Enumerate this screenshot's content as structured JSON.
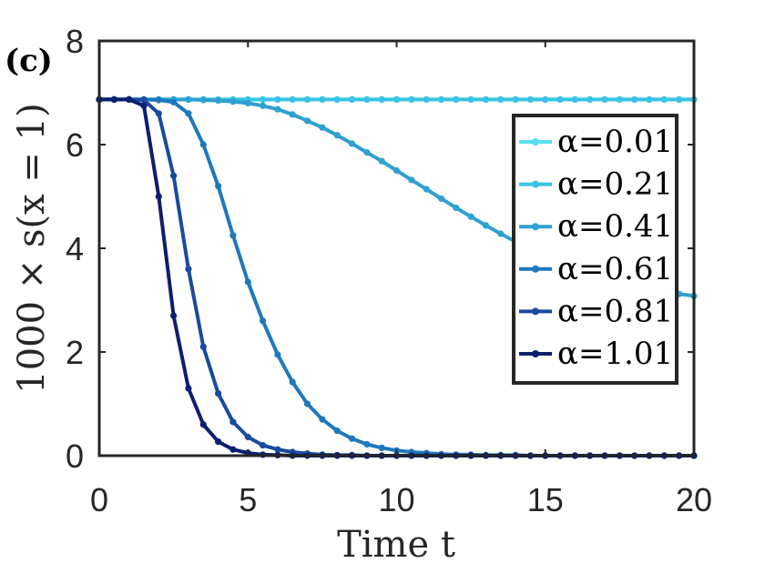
{
  "chart_data": {
    "type": "line",
    "panel_label": "(c)",
    "xlabel": "Time t",
    "ylabel": "1000 × s(x = 1)",
    "xlim": [
      0,
      20
    ],
    "ylim": [
      0,
      8
    ],
    "xticks": [
      0,
      5,
      10,
      15,
      20
    ],
    "yticks": [
      0,
      2,
      4,
      6,
      8
    ],
    "xtick_labels": [
      "0",
      "5",
      "10",
      "15",
      "20"
    ],
    "ytick_labels": [
      "0",
      "2",
      "4",
      "6",
      "8"
    ],
    "grid": false,
    "legend_position": "right",
    "marker": "dot",
    "x": [
      0,
      0.5,
      1,
      1.5,
      2,
      2.5,
      3,
      3.5,
      4,
      4.5,
      5,
      5.5,
      6,
      6.5,
      7,
      7.5,
      8,
      8.5,
      9,
      9.5,
      10,
      10.5,
      11,
      11.5,
      12,
      12.5,
      13,
      13.5,
      14,
      14.5,
      15,
      15.5,
      16,
      16.5,
      17,
      17.5,
      18,
      18.5,
      19,
      19.5,
      20
    ],
    "series": [
      {
        "name": "α=0.01",
        "color": "#55e0f0",
        "values": [
          6.87,
          6.87,
          6.87,
          6.87,
          6.87,
          6.87,
          6.87,
          6.87,
          6.87,
          6.87,
          6.87,
          6.87,
          6.87,
          6.87,
          6.87,
          6.87,
          6.87,
          6.87,
          6.87,
          6.87,
          6.87,
          6.87,
          6.87,
          6.87,
          6.87,
          6.87,
          6.87,
          6.87,
          6.87,
          6.87,
          6.87,
          6.87,
          6.87,
          6.87,
          6.87,
          6.87,
          6.87,
          6.87,
          6.87,
          6.87,
          6.87
        ]
      },
      {
        "name": "α=0.21",
        "color": "#38c4e6",
        "values": [
          6.87,
          6.87,
          6.87,
          6.87,
          6.87,
          6.87,
          6.87,
          6.87,
          6.87,
          6.87,
          6.87,
          6.87,
          6.87,
          6.87,
          6.87,
          6.87,
          6.87,
          6.87,
          6.87,
          6.87,
          6.87,
          6.87,
          6.87,
          6.87,
          6.87,
          6.87,
          6.87,
          6.87,
          6.87,
          6.87,
          6.87,
          6.87,
          6.87,
          6.87,
          6.87,
          6.87,
          6.87,
          6.87,
          6.87,
          6.87,
          6.87
        ]
      },
      {
        "name": "α=0.41",
        "color": "#2fa0d2",
        "values": [
          6.87,
          6.87,
          6.87,
          6.87,
          6.87,
          6.87,
          6.87,
          6.86,
          6.85,
          6.83,
          6.8,
          6.75,
          6.68,
          6.58,
          6.46,
          6.33,
          6.18,
          6.02,
          5.85,
          5.68,
          5.5,
          5.32,
          5.14,
          4.96,
          4.78,
          4.61,
          4.44,
          4.28,
          4.13,
          3.98,
          3.85,
          3.72,
          3.6,
          3.5,
          3.42,
          3.35,
          3.28,
          3.22,
          3.16,
          3.12,
          3.08
        ]
      },
      {
        "name": "α=0.61",
        "color": "#1f78bc",
        "values": [
          6.87,
          6.87,
          6.87,
          6.87,
          6.86,
          6.82,
          6.6,
          6.0,
          5.2,
          4.25,
          3.35,
          2.6,
          1.95,
          1.42,
          1.0,
          0.7,
          0.48,
          0.33,
          0.22,
          0.15,
          0.1,
          0.07,
          0.05,
          0.03,
          0.02,
          0.02,
          0.01,
          0.01,
          0.01,
          0.0,
          0.0,
          0.0,
          0.0,
          0.0,
          0.0,
          0.0,
          0.0,
          0.0,
          0.0,
          0.0,
          0.0
        ]
      },
      {
        "name": "α=0.81",
        "color": "#1a4a9e",
        "values": [
          6.87,
          6.87,
          6.87,
          6.86,
          6.6,
          5.4,
          3.6,
          2.1,
          1.2,
          0.65,
          0.36,
          0.2,
          0.12,
          0.07,
          0.04,
          0.02,
          0.01,
          0.01,
          0.0,
          0.0,
          0.0,
          0.0,
          0.0,
          0.0,
          0.0,
          0.0,
          0.0,
          0.0,
          0.0,
          0.0,
          0.0,
          0.0,
          0.0,
          0.0,
          0.0,
          0.0,
          0.0,
          0.0,
          0.0,
          0.0,
          0.0
        ]
      },
      {
        "name": "α=1.01",
        "color": "#0b1f6e",
        "values": [
          6.87,
          6.87,
          6.87,
          6.75,
          5.0,
          2.7,
          1.3,
          0.6,
          0.27,
          0.12,
          0.05,
          0.02,
          0.01,
          0.0,
          0.0,
          0.0,
          0.0,
          0.0,
          0.0,
          0.0,
          0.0,
          0.0,
          0.0,
          0.0,
          0.0,
          0.0,
          0.0,
          0.0,
          0.0,
          0.0,
          0.0,
          0.0,
          0.0,
          0.0,
          0.0,
          0.0,
          0.0,
          0.0,
          0.0,
          0.0,
          0.0
        ]
      }
    ]
  }
}
